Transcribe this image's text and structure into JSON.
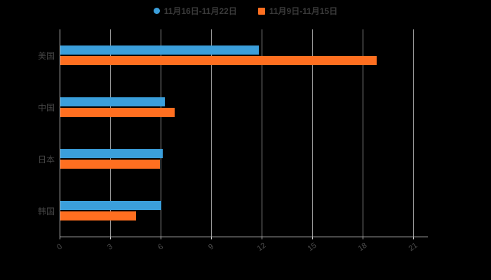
{
  "legend": [
    {
      "label": "11月16日-11月22日",
      "color": "#3B9FDB",
      "shape": "circle"
    },
    {
      "label": "11月9日-11月15日",
      "color": "#FF6F20",
      "shape": "square"
    }
  ],
  "chart_data": {
    "type": "bar",
    "orientation": "horizontal",
    "title": "",
    "xlabel": "",
    "ylabel": "",
    "categories": [
      "美国",
      "中国",
      "日本",
      "韩国"
    ],
    "series": [
      {
        "name": "11月16日-11月22日",
        "color": "#3B9FDB",
        "values": [
          11.8,
          6.2,
          6.1,
          6.0
        ]
      },
      {
        "name": "11月9日-11月15日",
        "color": "#FF6F20",
        "values": [
          18.8,
          6.8,
          5.9,
          4.5
        ]
      }
    ],
    "xlim": [
      0,
      21
    ],
    "xticks": [
      0,
      3,
      6,
      9,
      12,
      15,
      18,
      21
    ],
    "grid": true,
    "legend_position": "top",
    "background": "#000000",
    "text_color": "#4c4c4c"
  }
}
